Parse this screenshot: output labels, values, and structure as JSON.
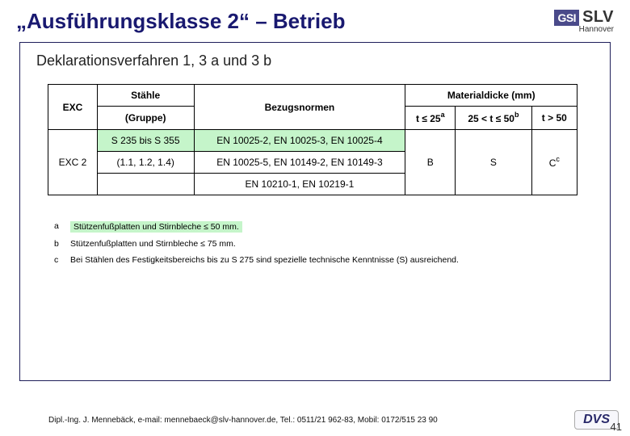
{
  "header": {
    "title": "„Ausführungsklasse 2“ – Betrieb",
    "logo_box": "GSI",
    "logo_text": "SLV",
    "logo_sub": "Hannover"
  },
  "subtitle": "Deklarationsverfahren 1, 3 a und 3 b",
  "table": {
    "head": {
      "exc": "EXC",
      "staehle": "Stähle",
      "bezug": "Bezugsnormen",
      "material": "Materialdicke (mm)",
      "gruppe": "(Gruppe)",
      "col1_pre": "t ≤ 25",
      "col1_sup": "a",
      "col2_pre": "25 < t ≤ 50",
      "col2_sup": "b",
      "col3": "t > 50"
    },
    "row": {
      "exc": "EXC 2",
      "staehle1": "S 235 bis S 355",
      "staehle2": "(1.1, 1.2, 1.4)",
      "bezug1": "EN 10025-2, EN 10025-3, EN 10025-4",
      "bezug2": "EN 10025-5, EN 10149-2, EN 10149-3",
      "bezug3": "EN 10210-1, EN 10219-1",
      "c1": "B",
      "c2": "S",
      "c3_pre": "C",
      "c3_sup": "c"
    }
  },
  "notes": {
    "a_key": "a",
    "a_text": "Stützenfußplatten und Stirnbleche ≤ 50 mm.",
    "b_key": "b",
    "b_text": "Stützenfußplatten und Stirnbleche ≤ 75 mm.",
    "c_key": "c",
    "c_text": "Bei Stählen des Festigkeitsbereichs bis zu S 275 sind spezielle technische Kenntnisse (S) ausreichend."
  },
  "footer": {
    "text": "Dipl.-Ing. J. Mennebäck, e-mail: mennebaeck@slv-hannover.de, Tel.: 0511/21 962-83, Mobil: 0172/515 23 90",
    "dvs": "DVS",
    "page": "41"
  },
  "colors": {
    "title": "#191970",
    "highlight": "#c5f5ca",
    "frame": "#1e1e5a"
  }
}
